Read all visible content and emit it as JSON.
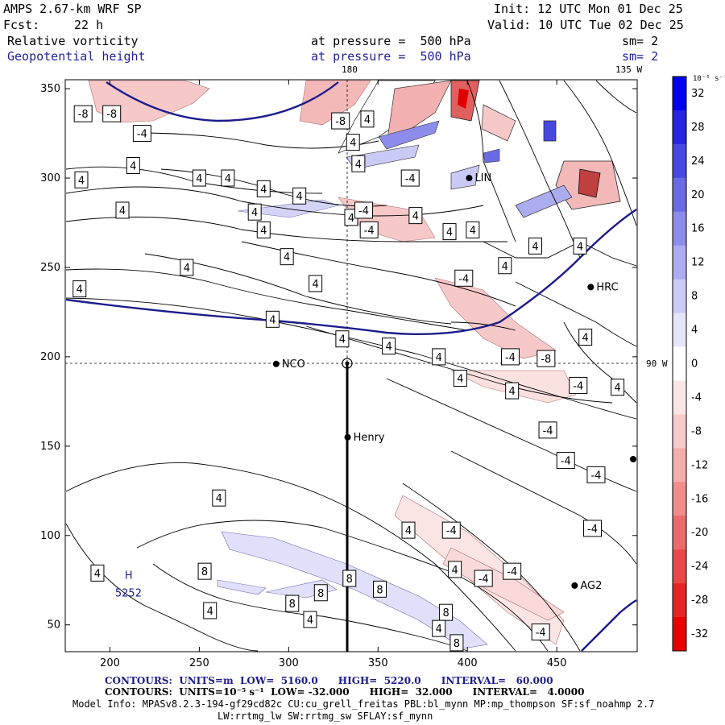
{
  "header": {
    "model": "AMPS 2.67-km WRF SP",
    "init": "Init: 12 UTC Mon 01 Dec 25",
    "fcst_label": "Fcst:",
    "fcst_value": "22 h",
    "valid": "Valid: 10 UTC Tue 02 Dec 25",
    "field1": "Relative vorticity",
    "field1_level": "at pressure =  500 hPa",
    "field1_sm": "sm= 2",
    "field2": "Geopotential height",
    "field2_level": "at pressure =  500 hPa",
    "field2_sm": "sm= 2"
  },
  "footer": {
    "line1": "CONTOURS:  UNITS=m  LOW=  5160.0      HIGH=  5220.0      INTERVAL=   60.000",
    "line2": "CONTOURS:  UNITS=10⁻⁵ s⁻¹  LOW= -32.000      HIGH=  32.000      INTERVAL=   4.0000",
    "line3": "Model Info: MPASv8.2.3-194-gf29cd82c CU:cu_grell_freitas PBL:bl_mynn MP:mp_thompson SF:sf_noahmp 2.7",
    "line4": "LW:rrtmg_lw SW:rrtmg_sw SFLAY:sf_mynn"
  },
  "colorbar": {
    "unit_label": "10⁻⁵ s⁻¹",
    "ticks": [
      "32",
      "28",
      "24",
      "20",
      "16",
      "12",
      "8",
      "4",
      "0",
      "-4",
      "-8",
      "-12",
      "-16",
      "-20",
      "-24",
      "-28",
      "-32"
    ],
    "colors": [
      "#0000ee",
      "#2525e2",
      "#4848e0",
      "#6a6ae4",
      "#8c8cea",
      "#acacf0",
      "#cacaf6",
      "#e6e6fb",
      "#ffffff",
      "#fbe6e6",
      "#f8caca",
      "#f4acac",
      "#f08c8c",
      "#eb6a6a",
      "#e84848",
      "#e52525",
      "#e80000"
    ]
  },
  "chart_data": {
    "type": "contour-map",
    "xlabel": "",
    "ylabel": "",
    "xlim": [
      175,
      495
    ],
    "ylim": [
      35,
      355
    ],
    "xticks": [
      200,
      250,
      300,
      350,
      400,
      450
    ],
    "yticks": [
      50,
      100,
      150,
      200,
      250,
      300,
      350
    ],
    "top_labels": [
      "180",
      "135 W"
    ],
    "right_label": "90 W",
    "stations": [
      {
        "name": "NCO",
        "x": 293,
        "y": 196
      },
      {
        "name": "Henry",
        "x": 333,
        "y": 155
      },
      {
        "name": "LIN",
        "x": 401,
        "y": 300
      },
      {
        "name": "HRC",
        "x": 469,
        "y": 239
      },
      {
        "name": "AG2",
        "x": 460,
        "y": 72
      }
    ],
    "high_center": {
      "label": "H",
      "value": "5252",
      "x": 211,
      "y": 73
    },
    "crosshair": {
      "x": 333,
      "y": 196
    },
    "vertical_transect": {
      "x": 333,
      "y_from": 196,
      "y_to": 35
    },
    "contour_labels": [
      {
        "t": "-8",
        "x": 185,
        "y": 336
      },
      {
        "t": "-8",
        "x": 201,
        "y": 336
      },
      {
        "t": "-4",
        "x": 218,
        "y": 325
      },
      {
        "t": "-8",
        "x": 329,
        "y": 332
      },
      {
        "t": "4",
        "x": 344,
        "y": 333
      },
      {
        "t": "4",
        "x": 336,
        "y": 320
      },
      {
        "t": "4",
        "x": 213,
        "y": 307
      },
      {
        "t": "4",
        "x": 250,
        "y": 300
      },
      {
        "t": "4",
        "x": 266,
        "y": 300
      },
      {
        "t": "4",
        "x": 184,
        "y": 299
      },
      {
        "t": "4",
        "x": 339,
        "y": 308
      },
      {
        "t": "-4",
        "x": 368,
        "y": 300
      },
      {
        "t": "4",
        "x": 286,
        "y": 294
      },
      {
        "t": "4",
        "x": 306,
        "y": 290
      },
      {
        "t": "4",
        "x": 281,
        "y": 281
      },
      {
        "t": "4",
        "x": 335,
        "y": 278
      },
      {
        "t": "-4",
        "x": 342,
        "y": 282
      },
      {
        "t": "4",
        "x": 371,
        "y": 279
      },
      {
        "t": "4",
        "x": 207,
        "y": 282
      },
      {
        "t": "4",
        "x": 286,
        "y": 271
      },
      {
        "t": "-4",
        "x": 345,
        "y": 271
      },
      {
        "t": "4",
        "x": 403,
        "y": 271
      },
      {
        "t": "4",
        "x": 438,
        "y": 262
      },
      {
        "t": "4",
        "x": 390,
        "y": 270
      },
      {
        "t": "4",
        "x": 299,
        "y": 256
      },
      {
        "t": "4",
        "x": 463,
        "y": 262
      },
      {
        "t": "4",
        "x": 243,
        "y": 250
      },
      {
        "t": "-4",
        "x": 398,
        "y": 244
      },
      {
        "t": "4",
        "x": 421,
        "y": 251
      },
      {
        "t": "4",
        "x": 315,
        "y": 241
      },
      {
        "t": "4",
        "x": 183,
        "y": 238
      },
      {
        "t": "4",
        "x": 291,
        "y": 221
      },
      {
        "t": "4",
        "x": 330,
        "y": 210
      },
      {
        "t": "4",
        "x": 356,
        "y": 206
      },
      {
        "t": "4",
        "x": 384,
        "y": 200
      },
      {
        "t": "-4",
        "x": 424,
        "y": 200
      },
      {
        "t": "-8",
        "x": 444,
        "y": 199
      },
      {
        "t": "4",
        "x": 466,
        "y": 211
      },
      {
        "t": "4",
        "x": 396,
        "y": 188
      },
      {
        "t": "4",
        "x": 425,
        "y": 181
      },
      {
        "t": "-4",
        "x": 462,
        "y": 184
      },
      {
        "t": "4",
        "x": 484,
        "y": 183
      },
      {
        "t": "-4",
        "x": 445,
        "y": 159
      },
      {
        "t": "-4",
        "x": 455,
        "y": 142
      },
      {
        "t": "-4",
        "x": 472,
        "y": 134
      },
      {
        "t": "4",
        "x": 261,
        "y": 121
      },
      {
        "t": "4",
        "x": 367,
        "y": 103
      },
      {
        "t": "-4",
        "x": 391,
        "y": 103
      },
      {
        "t": "-4",
        "x": 470,
        "y": 104
      },
      {
        "t": "8",
        "x": 253,
        "y": 80
      },
      {
        "t": "4",
        "x": 393,
        "y": 81
      },
      {
        "t": "-4",
        "x": 409,
        "y": 76
      },
      {
        "t": "-4",
        "x": 425,
        "y": 80
      },
      {
        "t": "4",
        "x": 193,
        "y": 79
      },
      {
        "t": "8",
        "x": 334,
        "y": 76
      },
      {
        "t": "8",
        "x": 351,
        "y": 70
      },
      {
        "t": "8",
        "x": 318,
        "y": 68
      },
      {
        "t": "8",
        "x": 302,
        "y": 62
      },
      {
        "t": "4",
        "x": 256,
        "y": 58
      },
      {
        "t": "4",
        "x": 312,
        "y": 53
      },
      {
        "t": "8",
        "x": 388,
        "y": 57
      },
      {
        "t": "4",
        "x": 384,
        "y": 48
      },
      {
        "t": "-4",
        "x": 441,
        "y": 46
      },
      {
        "t": "8",
        "x": 394,
        "y": 40
      }
    ],
    "height_contours_m": [
      5220,
      5160
    ]
  }
}
